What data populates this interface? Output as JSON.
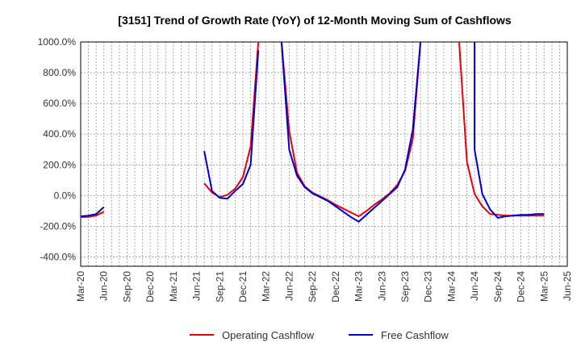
{
  "chart_data": {
    "type": "line",
    "title": "[3151]  Trend of Growth Rate (YoY) of 12-Month Moving Sum of Cashflows",
    "xlabel": "",
    "ylabel": "",
    "ylim": [
      -460,
      1000
    ],
    "y_ticks": [
      1000,
      800,
      600,
      400,
      200,
      0,
      -200,
      -400
    ],
    "y_tick_labels": [
      "1000.0%",
      "800.0%",
      "600.0%",
      "400.0%",
      "200.0%",
      "0.0%",
      "-200.0%",
      "-400.0%"
    ],
    "x_tick_labels": [
      "Mar-20",
      "Jun-20",
      "Sep-20",
      "Dec-20",
      "Mar-21",
      "Jun-21",
      "Sep-21",
      "Dec-21",
      "Mar-22",
      "Jun-22",
      "Sep-22",
      "Dec-22",
      "Mar-23",
      "Jun-23",
      "Sep-23",
      "Dec-23",
      "Mar-24",
      "Jun-24",
      "Sep-24",
      "Dec-24",
      "Mar-25",
      "Jun-25"
    ],
    "grid": true,
    "legend_position": "bottom",
    "series": [
      {
        "name": "Operating Cashflow",
        "color": "#e8000b",
        "points": [
          [
            "Mar-20",
            -140
          ],
          [
            "Apr-20",
            -138
          ],
          [
            "May-20",
            -130
          ],
          [
            "Jun-20",
            -105
          ],
          [
            "Jul-21",
            80
          ],
          [
            "Aug-21",
            20
          ],
          [
            "Sep-21",
            -10
          ],
          [
            "Oct-21",
            5
          ],
          [
            "Nov-21",
            45
          ],
          [
            "Dec-21",
            120
          ],
          [
            "Jan-22",
            320
          ],
          [
            "Feb-22",
            1000
          ],
          [
            "May-22",
            1000
          ],
          [
            "Jun-22",
            420
          ],
          [
            "Jul-22",
            150
          ],
          [
            "Aug-22",
            60
          ],
          [
            "Sep-22",
            20
          ],
          [
            "Oct-22",
            -5
          ],
          [
            "Nov-22",
            -30
          ],
          [
            "Dec-22",
            -60
          ],
          [
            "Jan-23",
            -85
          ],
          [
            "Feb-23",
            -110
          ],
          [
            "Mar-23",
            -135
          ],
          [
            "Apr-23",
            -100
          ],
          [
            "May-23",
            -60
          ],
          [
            "Jun-23",
            -25
          ],
          [
            "Jul-23",
            15
          ],
          [
            "Aug-23",
            70
          ],
          [
            "Sep-23",
            160
          ],
          [
            "Oct-23",
            370
          ],
          [
            "Nov-23",
            1000
          ],
          [
            "Apr-24",
            1000
          ],
          [
            "May-24",
            220
          ],
          [
            "Jun-24",
            10
          ],
          [
            "Jul-24",
            -70
          ],
          [
            "Aug-24",
            -120
          ],
          [
            "Sep-24",
            -125
          ],
          [
            "Oct-24",
            -130
          ],
          [
            "Nov-24",
            -130
          ],
          [
            "Dec-24",
            -130
          ],
          [
            "Jan-25",
            -130
          ],
          [
            "Feb-25",
            -130
          ],
          [
            "Mar-25",
            -130
          ]
        ]
      },
      {
        "name": "Free Cashflow",
        "color": "#0000cc",
        "points": [
          [
            "Mar-20",
            -135
          ],
          [
            "Apr-20",
            -130
          ],
          [
            "May-20",
            -120
          ],
          [
            "Jun-20",
            -75
          ],
          [
            "Jul-21",
            290
          ],
          [
            "Aug-21",
            30
          ],
          [
            "Sep-21",
            -15
          ],
          [
            "Oct-21",
            -20
          ],
          [
            "Nov-21",
            30
          ],
          [
            "Dec-21",
            75
          ],
          [
            "Jan-22",
            200
          ],
          [
            "Feb-22",
            945
          ],
          [
            "May-22",
            1000
          ],
          [
            "Jun-22",
            300
          ],
          [
            "Jul-22",
            130
          ],
          [
            "Aug-22",
            55
          ],
          [
            "Sep-22",
            15
          ],
          [
            "Oct-22",
            -10
          ],
          [
            "Nov-22",
            -35
          ],
          [
            "Dec-22",
            -70
          ],
          [
            "Jan-23",
            -105
          ],
          [
            "Feb-23",
            -140
          ],
          [
            "Mar-23",
            -170
          ],
          [
            "Apr-23",
            -125
          ],
          [
            "May-23",
            -80
          ],
          [
            "Jun-23",
            -35
          ],
          [
            "Jul-23",
            10
          ],
          [
            "Aug-23",
            55
          ],
          [
            "Sep-23",
            170
          ],
          [
            "Oct-23",
            430
          ],
          [
            "Nov-23",
            1000
          ],
          [
            "Jun-24",
            1000
          ],
          [
            "Jun-24",
            300
          ],
          [
            "Jul-24",
            10
          ],
          [
            "Aug-24",
            -90
          ],
          [
            "Sep-24",
            -145
          ],
          [
            "Oct-24",
            -135
          ],
          [
            "Nov-24",
            -130
          ],
          [
            "Dec-24",
            -125
          ],
          [
            "Jan-25",
            -125
          ],
          [
            "Feb-25",
            -120
          ],
          [
            "Mar-25",
            -120
          ]
        ]
      }
    ]
  }
}
